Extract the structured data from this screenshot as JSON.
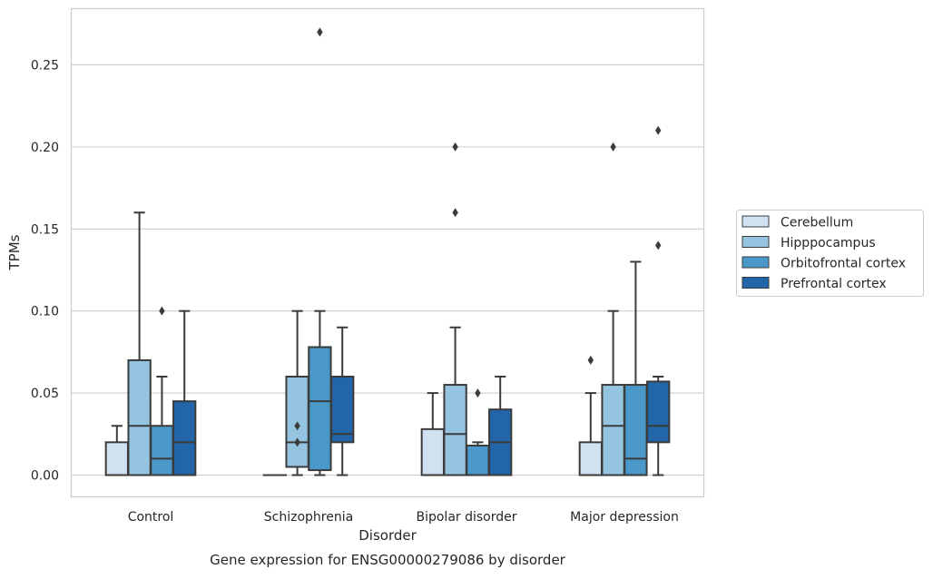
{
  "chart_data": {
    "type": "boxplot",
    "caption": "Gene expression for ENSG00000279086 by disorder",
    "xlabel": "Disorder",
    "ylabel": "TPMs",
    "ylim": [
      -0.013,
      0.284
    ],
    "yticks": [
      "0.00",
      "0.05",
      "0.10",
      "0.15",
      "0.20",
      "0.25"
    ],
    "ytick_values": [
      0,
      0.05,
      0.1,
      0.15,
      0.2,
      0.25
    ],
    "grid": "horizontal",
    "legend_position": "right",
    "categories": [
      "Control",
      "Schizophrenia",
      "Bipolar disorder",
      "Major depression"
    ],
    "series": [
      {
        "name": "Cerebellum",
        "color": "#d0e1f2",
        "boxes": [
          {
            "whislo": 0,
            "q1": 0,
            "med": 0,
            "q3": 0.02,
            "whishi": 0.03,
            "fliers": []
          },
          {
            "whislo": 0,
            "q1": 0,
            "med": 0,
            "q3": 0,
            "whishi": 0,
            "fliers": []
          },
          {
            "whislo": 0,
            "q1": 0,
            "med": 0,
            "q3": 0.028,
            "whishi": 0.05,
            "fliers": []
          },
          {
            "whislo": 0,
            "q1": 0,
            "med": 0,
            "q3": 0.02,
            "whishi": 0.05,
            "fliers": [
              0.07
            ]
          }
        ]
      },
      {
        "name": "Hipppocampus",
        "color": "#94c4df",
        "boxes": [
          {
            "whislo": 0,
            "q1": 0,
            "med": 0.03,
            "q3": 0.07,
            "whishi": 0.16,
            "fliers": []
          },
          {
            "whislo": 0,
            "q1": 0.005,
            "med": 0.02,
            "q3": 0.06,
            "whishi": 0.1,
            "fliers": [
              0.03,
              0.02
            ]
          },
          {
            "whislo": 0,
            "q1": 0,
            "med": 0.025,
            "q3": 0.055,
            "whishi": 0.09,
            "fliers": [
              0.16,
              0.2
            ]
          },
          {
            "whislo": 0,
            "q1": 0,
            "med": 0.03,
            "q3": 0.055,
            "whishi": 0.1,
            "fliers": [
              0.2
            ]
          }
        ]
      },
      {
        "name": "Orbitofrontal cortex",
        "color": "#4a98c9",
        "boxes": [
          {
            "whislo": 0,
            "q1": 0,
            "med": 0.01,
            "q3": 0.03,
            "whishi": 0.06,
            "fliers": [
              0.1
            ]
          },
          {
            "whislo": 0,
            "q1": 0.003,
            "med": 0.045,
            "q3": 0.078,
            "whishi": 0.1,
            "fliers": [
              0.27
            ]
          },
          {
            "whislo": 0,
            "q1": 0,
            "med": 0,
            "q3": 0.018,
            "whishi": 0.02,
            "fliers": [
              0.05
            ]
          },
          {
            "whislo": 0,
            "q1": 0,
            "med": 0.01,
            "q3": 0.055,
            "whishi": 0.13,
            "fliers": []
          }
        ]
      },
      {
        "name": "Prefrontal cortex",
        "color": "#2265a8",
        "boxes": [
          {
            "whislo": 0,
            "q1": 0,
            "med": 0.02,
            "q3": 0.045,
            "whishi": 0.1,
            "fliers": []
          },
          {
            "whislo": 0,
            "q1": 0.02,
            "med": 0.025,
            "q3": 0.06,
            "whishi": 0.09,
            "fliers": []
          },
          {
            "whislo": 0,
            "q1": 0,
            "med": 0.02,
            "q3": 0.04,
            "whishi": 0.06,
            "fliers": []
          },
          {
            "whislo": 0,
            "q1": 0.02,
            "med": 0.03,
            "q3": 0.057,
            "whishi": 0.06,
            "fliers": [
              0.14,
              0.21
            ]
          }
        ]
      }
    ]
  }
}
